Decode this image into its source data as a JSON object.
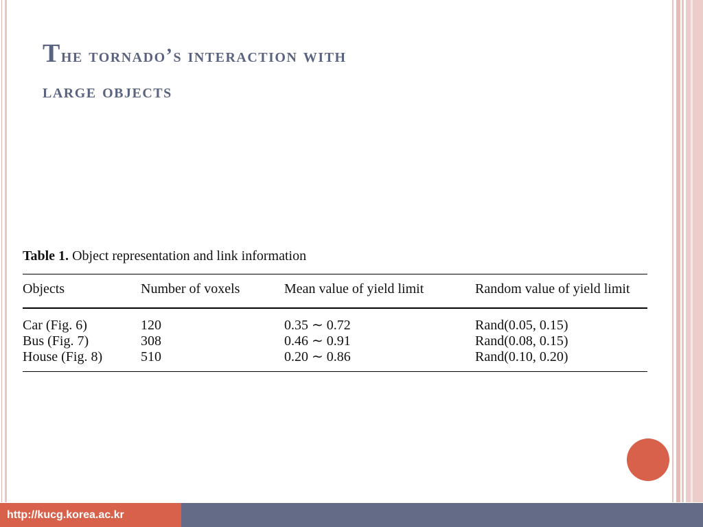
{
  "slide": {
    "title_line1_initial": "T",
    "title_line1_rest": "he tornado’s interaction with",
    "title_line2": "large objects"
  },
  "table": {
    "caption_label": "Table 1.",
    "caption_text": " Object representation and link information",
    "headers": [
      "Objects",
      "Number of voxels",
      "Mean value of yield limit",
      "Random value of yield limit"
    ],
    "rows": [
      [
        "Car (Fig. 6)",
        "120",
        "0.35 ∼ 0.72",
        "Rand(0.05, 0.15)"
      ],
      [
        "Bus (Fig. 7)",
        "308",
        "0.46 ∼ 0.91",
        "Rand(0.08, 0.15)"
      ],
      [
        "House (Fig. 8)",
        "510",
        "0.20 ∼ 0.86",
        "Rand(0.10, 0.20)"
      ]
    ]
  },
  "footer": {
    "url": "http://kucg.korea.ac.kr"
  },
  "colors": {
    "title": "#5a6480",
    "accent": "#d7614a",
    "footer_bar": "#636b86",
    "stripe": "#e8bcb6"
  }
}
